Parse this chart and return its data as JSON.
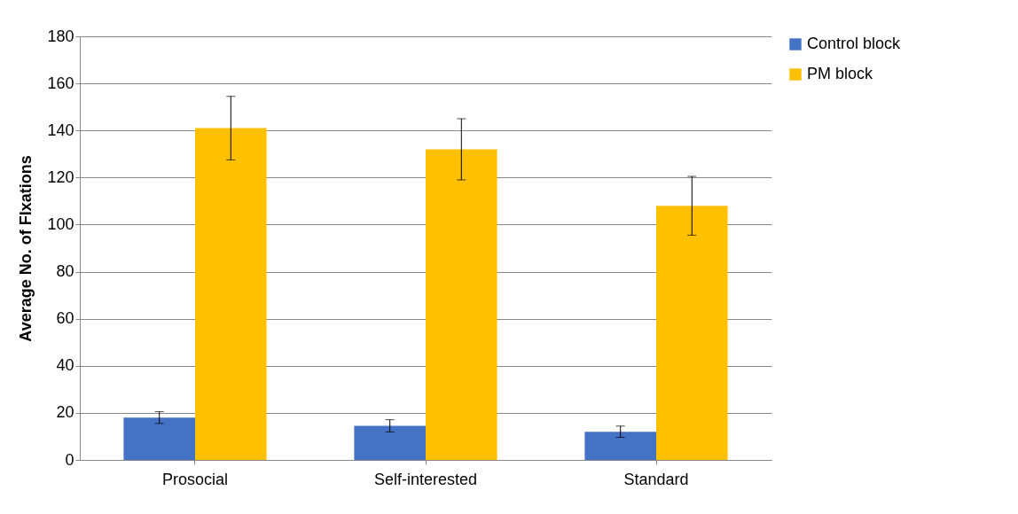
{
  "chart_data": {
    "type": "bar",
    "ylabel": "Average No. of FIxations",
    "categories": [
      "Prosocial",
      "Self-interested",
      "Standard"
    ],
    "series": [
      {
        "name": "Control block",
        "color": "#4472c4",
        "values": [
          18,
          14.5,
          12
        ],
        "errors": [
          2.5,
          2.6,
          2.4
        ]
      },
      {
        "name": "PM block",
        "color": "#ffc000",
        "values": [
          141,
          132,
          108
        ],
        "errors": [
          13.5,
          13,
          12.5
        ]
      }
    ],
    "ylim": [
      0,
      180
    ],
    "yticks": [
      0,
      20,
      40,
      60,
      80,
      100,
      120,
      140,
      160,
      180
    ],
    "grid": "y",
    "legend": "right"
  }
}
